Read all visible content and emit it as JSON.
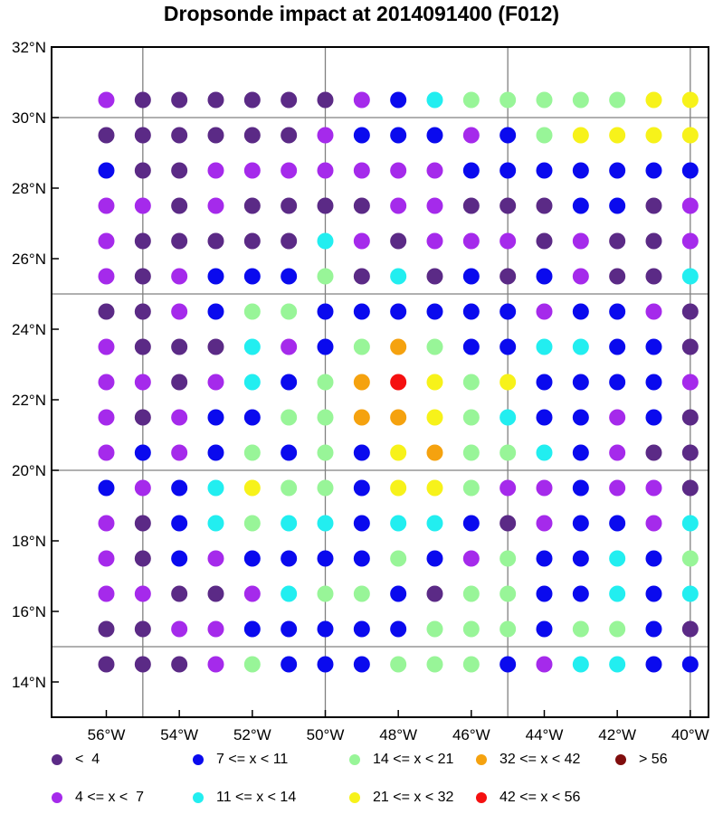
{
  "chart_data": {
    "type": "scatter",
    "title": "Dropsonde impact at 2014091400 (F012)",
    "xlabel": "",
    "ylabel": "",
    "xlim": [
      -57.5,
      -39.5
    ],
    "ylim": [
      13,
      32
    ],
    "x_ticks": [
      {
        "value": -56,
        "label": "56°W"
      },
      {
        "value": -54,
        "label": "54°W"
      },
      {
        "value": -52,
        "label": "52°W"
      },
      {
        "value": -50,
        "label": "50°W"
      },
      {
        "value": -48,
        "label": "48°W"
      },
      {
        "value": -46,
        "label": "46°W"
      },
      {
        "value": -44,
        "label": "44°W"
      },
      {
        "value": -42,
        "label": "42°W"
      },
      {
        "value": -40,
        "label": "40°W"
      }
    ],
    "y_ticks": [
      {
        "value": 14,
        "label": "14°N"
      },
      {
        "value": 16,
        "label": "16°N"
      },
      {
        "value": 18,
        "label": "18°N"
      },
      {
        "value": 20,
        "label": "20°N"
      },
      {
        "value": 22,
        "label": "22°N"
      },
      {
        "value": 24,
        "label": "24°N"
      },
      {
        "value": 26,
        "label": "26°N"
      },
      {
        "value": 28,
        "label": "28°N"
      },
      {
        "value": 30,
        "label": "30°N"
      },
      {
        "value": 32,
        "label": "32°N"
      }
    ],
    "grid_lons": [
      -55,
      -50,
      -45,
      -40
    ],
    "grid_lats": [
      15,
      20,
      25,
      30
    ],
    "lons": [
      -56,
      -55,
      -54,
      -53,
      -52,
      -51,
      -50,
      -49,
      -48,
      -47,
      -46,
      -45,
      -44,
      -43,
      -42,
      -41,
      -40
    ],
    "lats": [
      30.5,
      29.5,
      28.5,
      27.5,
      26.5,
      25.5,
      24.5,
      23.5,
      22.5,
      21.5,
      20.5,
      19.5,
      18.5,
      17.5,
      16.5,
      15.5,
      14.5
    ],
    "categories": [
      {
        "label": "<  4",
        "color": "#5b2a86"
      },
      {
        "label": "4 <= x <  7",
        "color": "#a52aeb"
      },
      {
        "label": "7 <= x < 11",
        "color": "#0a0aee"
      },
      {
        "label": "11 <= x < 14",
        "color": "#22eef0"
      },
      {
        "label": "14 <= x < 21",
        "color": "#98f598"
      },
      {
        "label": "21 <= x < 32",
        "color": "#f7f21a"
      },
      {
        "label": "32 <= x < 42",
        "color": "#f5a20f"
      },
      {
        "label": "42 <= x < 56",
        "color": "#f51010"
      },
      {
        "label": "> 56",
        "color": "#800d0d"
      }
    ],
    "grid_values": [
      [
        1,
        0,
        0,
        0,
        0,
        0,
        0,
        1,
        2,
        3,
        4,
        4,
        4,
        4,
        4,
        5,
        5
      ],
      [
        0,
        0,
        0,
        0,
        0,
        0,
        1,
        2,
        2,
        2,
        1,
        2,
        4,
        5,
        5,
        5,
        5
      ],
      [
        2,
        0,
        0,
        1,
        1,
        1,
        1,
        1,
        1,
        1,
        2,
        2,
        2,
        2,
        2,
        2,
        2
      ],
      [
        1,
        1,
        0,
        1,
        0,
        0,
        0,
        0,
        1,
        1,
        0,
        0,
        0,
        2,
        2,
        0,
        1
      ],
      [
        1,
        0,
        0,
        0,
        0,
        0,
        3,
        1,
        0,
        1,
        1,
        1,
        0,
        1,
        0,
        0,
        1
      ],
      [
        1,
        0,
        1,
        2,
        2,
        2,
        4,
        0,
        3,
        0,
        2,
        0,
        2,
        1,
        0,
        0,
        3
      ],
      [
        0,
        0,
        1,
        2,
        4,
        4,
        2,
        2,
        2,
        2,
        2,
        2,
        1,
        2,
        2,
        1,
        0
      ],
      [
        1,
        0,
        0,
        0,
        3,
        1,
        2,
        4,
        6,
        4,
        2,
        2,
        3,
        3,
        2,
        2,
        0
      ],
      [
        1,
        1,
        0,
        1,
        3,
        2,
        4,
        6,
        7,
        5,
        4,
        5,
        2,
        2,
        2,
        2,
        1
      ],
      [
        1,
        0,
        1,
        2,
        2,
        4,
        4,
        6,
        6,
        5,
        4,
        3,
        2,
        2,
        1,
        2,
        0
      ],
      [
        1,
        2,
        1,
        2,
        4,
        2,
        4,
        2,
        5,
        6,
        4,
        4,
        3,
        2,
        1,
        0,
        0
      ],
      [
        2,
        1,
        2,
        3,
        5,
        4,
        4,
        2,
        5,
        5,
        4,
        1,
        1,
        2,
        1,
        1,
        0
      ],
      [
        1,
        0,
        2,
        3,
        4,
        3,
        3,
        2,
        3,
        3,
        2,
        0,
        1,
        2,
        2,
        1,
        3
      ],
      [
        1,
        0,
        2,
        1,
        2,
        2,
        2,
        2,
        4,
        2,
        1,
        4,
        2,
        2,
        3,
        2,
        4
      ],
      [
        1,
        1,
        0,
        0,
        1,
        3,
        4,
        4,
        2,
        0,
        4,
        4,
        2,
        2,
        3,
        2,
        3
      ],
      [
        0,
        0,
        1,
        1,
        2,
        2,
        2,
        2,
        2,
        4,
        4,
        4,
        2,
        4,
        4,
        2,
        0
      ],
      [
        0,
        0,
        0,
        1,
        4,
        2,
        2,
        2,
        4,
        4,
        4,
        2,
        1,
        3,
        3,
        2,
        2
      ]
    ]
  },
  "legend": [
    {
      "label": "<  4",
      "color": "#5b2a86"
    },
    {
      "label": "7 <= x < 11",
      "color": "#0a0aee"
    },
    {
      "label": "14 <= x < 21",
      "color": "#98f598"
    },
    {
      "label": "32 <= x < 42",
      "color": "#f5a20f"
    },
    {
      "label": "> 56",
      "color": "#800d0d"
    },
    {
      "label": "4 <= x <  7",
      "color": "#a52aeb"
    },
    {
      "label": "11 <= x < 14",
      "color": "#22eef0"
    },
    {
      "label": "21 <= x < 32",
      "color": "#f7f21a"
    },
    {
      "label": "42 <= x < 56",
      "color": "#f51010"
    }
  ]
}
